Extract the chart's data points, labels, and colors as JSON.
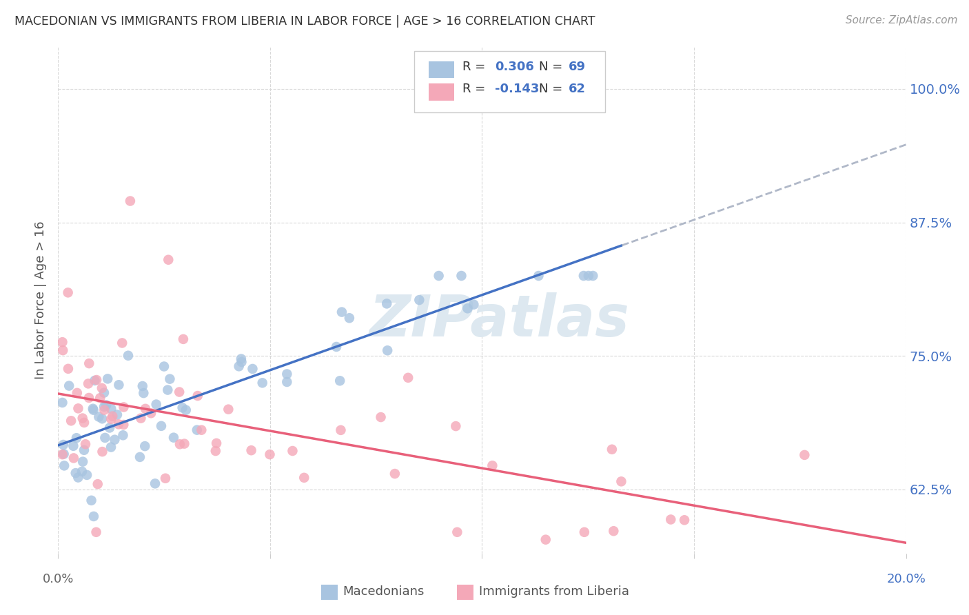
{
  "title": "MACEDONIAN VS IMMIGRANTS FROM LIBERIA IN LABOR FORCE | AGE > 16 CORRELATION CHART",
  "source": "Source: ZipAtlas.com",
  "ylabel": "In Labor Force | Age > 16",
  "ytick_labels": [
    "62.5%",
    "75.0%",
    "87.5%",
    "100.0%"
  ],
  "ytick_values": [
    0.625,
    0.75,
    0.875,
    1.0
  ],
  "xlim": [
    0.0,
    0.2
  ],
  "ylim": [
    0.565,
    1.04
  ],
  "blue_R": 0.306,
  "blue_N": 69,
  "pink_R": -0.143,
  "pink_N": 62,
  "blue_color": "#a8c4e0",
  "pink_color": "#f4a8b8",
  "blue_line_color": "#4472c4",
  "pink_line_color": "#e8607a",
  "gray_dash_color": "#b0b8c8",
  "legend_label_blue": "Macedonians",
  "legend_label_pink": "Immigrants from Liberia",
  "accent_color": "#4472c4",
  "watermark_color": "#dde8f0",
  "title_color": "#333333",
  "source_color": "#999999",
  "grid_color": "#d8d8d8",
  "ylabel_color": "#555555",
  "xtick_color_left": "#666666",
  "xtick_color_right": "#4472c4"
}
